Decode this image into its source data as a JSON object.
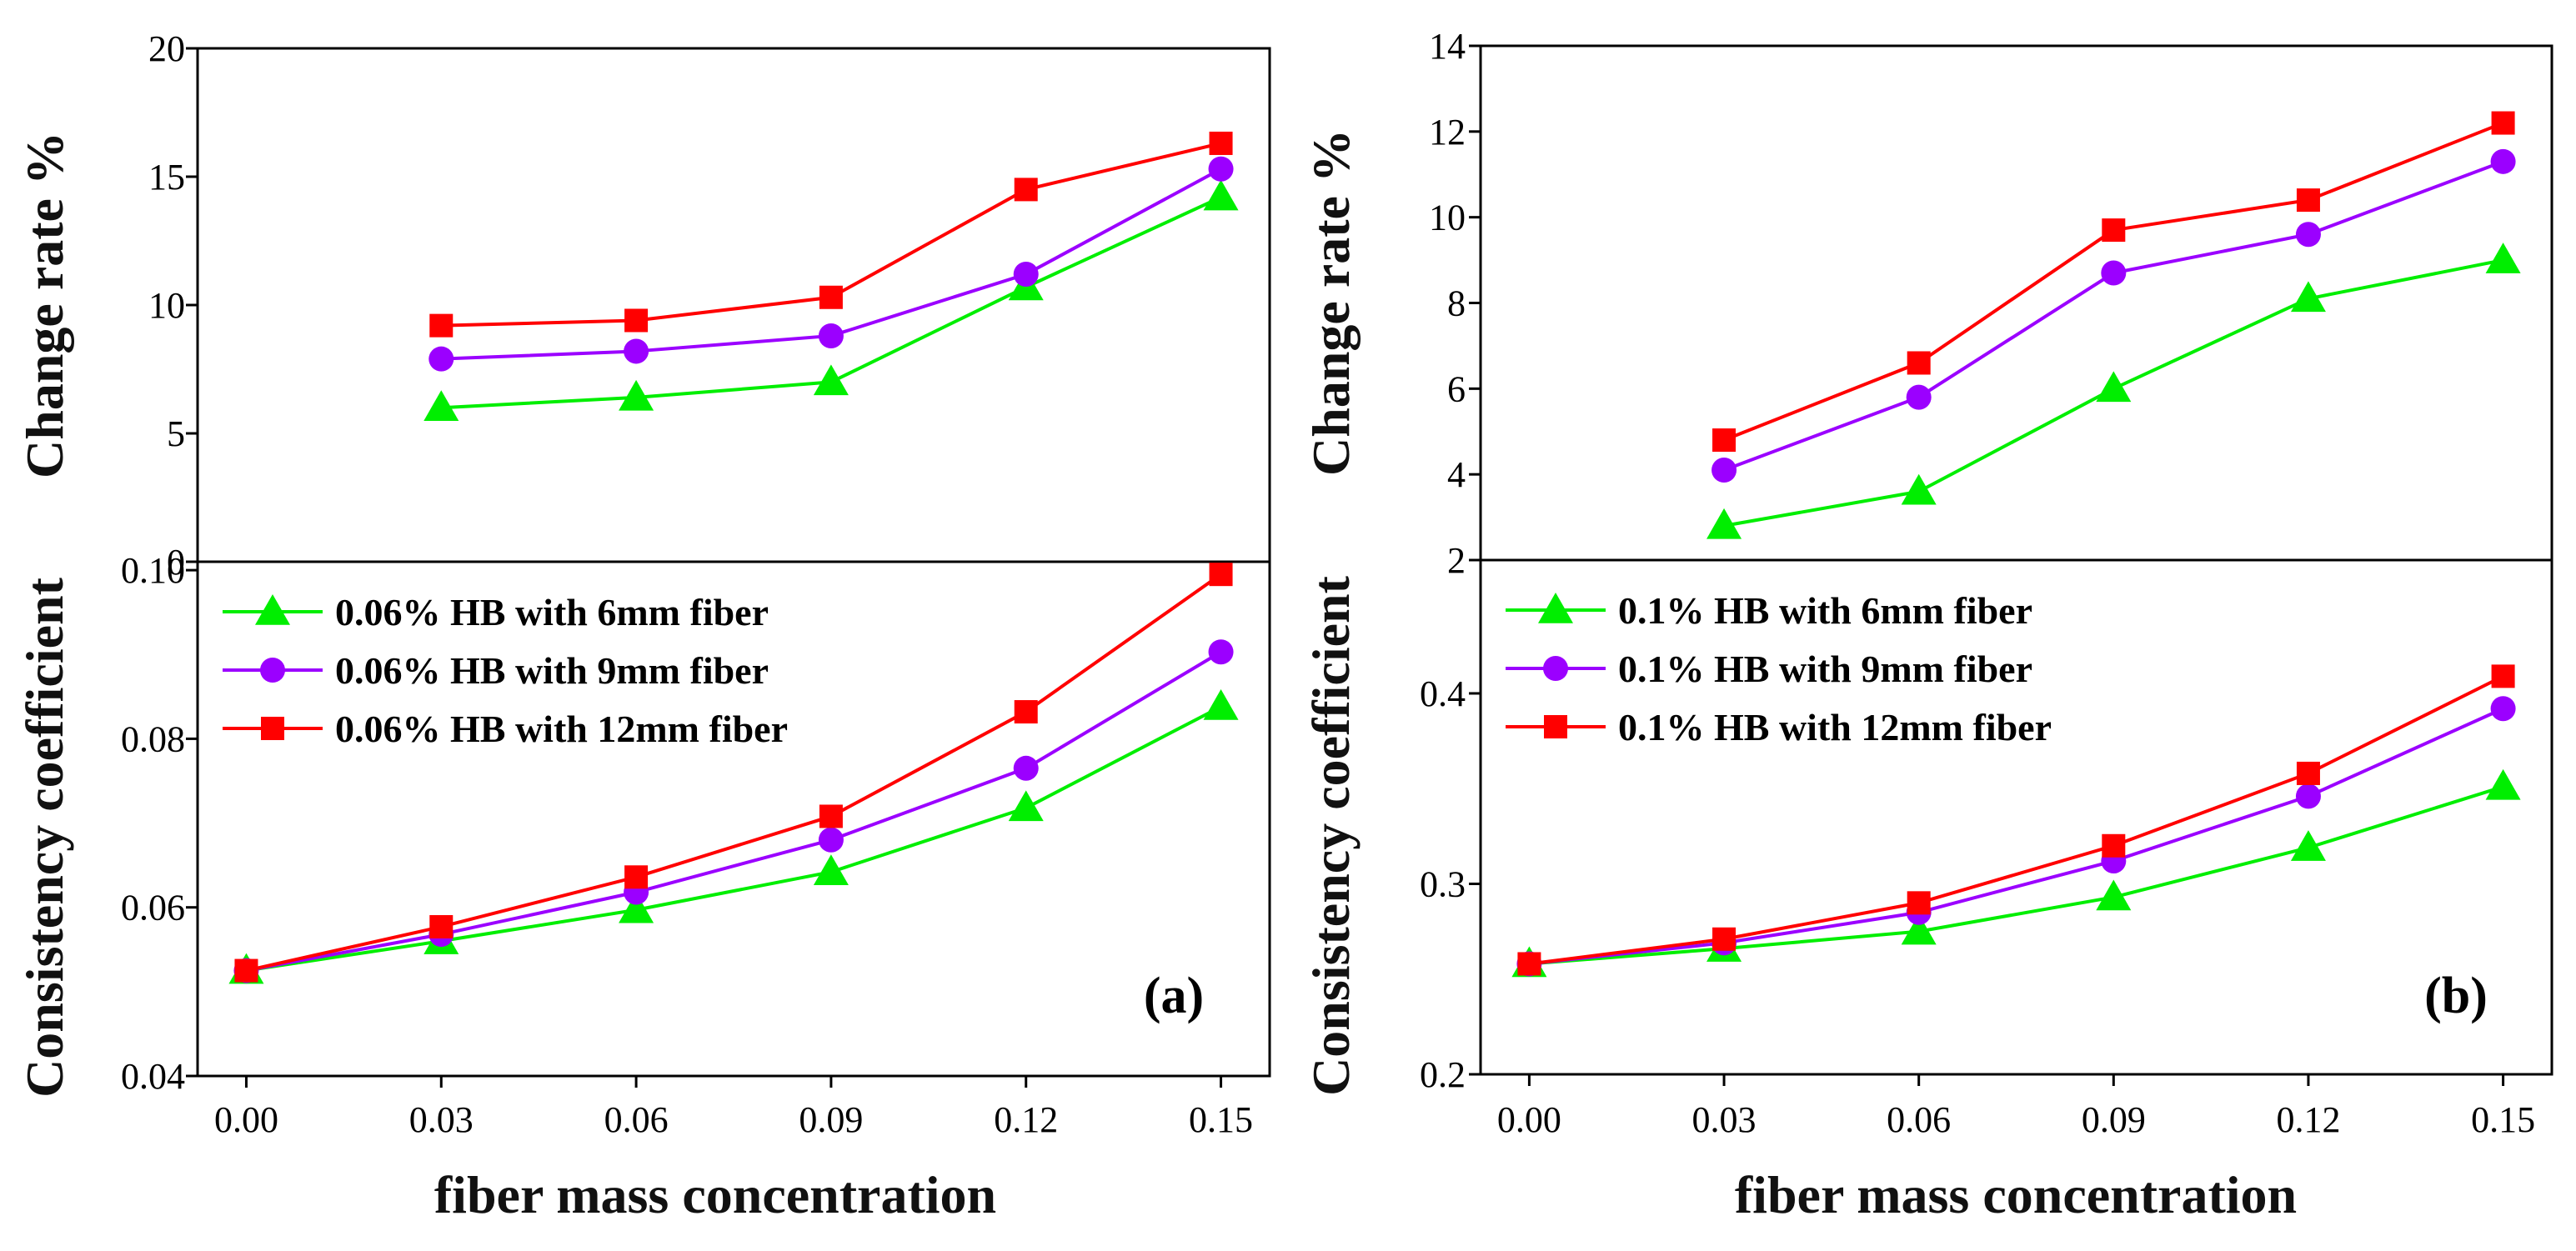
{
  "chart_data": [
    {
      "type": "line",
      "panel_label": "(a)",
      "x": [
        0.0,
        0.03,
        0.06,
        0.09,
        0.12,
        0.15
      ],
      "x_ticks": [
        "0.00",
        "0.03",
        "0.06",
        "0.09",
        "0.12",
        "0.15"
      ],
      "x_range": [
        -0.0075,
        0.1575
      ],
      "xlabel": "fiber mass concentration",
      "colors": [
        "#00ee00",
        "#9b00ff",
        "#ff0000"
      ],
      "markers": [
        "triangle",
        "circle",
        "square"
      ],
      "top": {
        "ylabel": "Change rate %",
        "ylim": [
          0,
          20
        ],
        "y_ticks": [
          "0",
          "5",
          "10",
          "15",
          "20"
        ],
        "series": [
          {
            "values": [
              null,
              6.0,
              6.4,
              7.0,
              10.7,
              14.2
            ]
          },
          {
            "values": [
              null,
              7.9,
              8.2,
              8.8,
              11.2,
              15.3
            ]
          },
          {
            "values": [
              null,
              9.2,
              9.4,
              10.3,
              14.5,
              16.3
            ]
          }
        ]
      },
      "bottom": {
        "ylabel": "Consistency coefficient",
        "ylim": [
          0.04,
          0.101
        ],
        "y_ticks": [
          "0.04",
          "0.06",
          "0.08",
          "0.10"
        ],
        "legend_position": "top-left",
        "series": [
          {
            "name": "0.06% HB with 6mm fiber",
            "values": [
              0.0525,
              0.056,
              0.0597,
              0.0642,
              0.0718,
              0.0838
            ]
          },
          {
            "name": "0.06% HB with 9mm fiber",
            "values": [
              0.0525,
              0.0568,
              0.0618,
              0.068,
              0.0765,
              0.0903
            ]
          },
          {
            "name": "0.06% HB with 12mm fiber",
            "values": [
              0.0525,
              0.0577,
              0.0636,
              0.0708,
              0.0832,
              0.0995
            ]
          }
        ]
      }
    },
    {
      "type": "line",
      "panel_label": "(b)",
      "x": [
        0.0,
        0.03,
        0.06,
        0.09,
        0.12,
        0.15
      ],
      "x_ticks": [
        "0.00",
        "0.03",
        "0.06",
        "0.09",
        "0.12",
        "0.15"
      ],
      "x_range": [
        -0.0075,
        0.1575
      ],
      "xlabel": "fiber mass concentration",
      "colors": [
        "#00ee00",
        "#9b00ff",
        "#ff0000"
      ],
      "markers": [
        "triangle",
        "circle",
        "square"
      ],
      "top": {
        "ylabel": "Change rate %",
        "ylim": [
          2,
          14
        ],
        "y_ticks": [
          "2",
          "4",
          "6",
          "8",
          "10",
          "12",
          "14"
        ],
        "series": [
          {
            "values": [
              null,
              2.8,
              3.6,
              6.0,
              8.1,
              9.0
            ]
          },
          {
            "values": [
              null,
              4.1,
              5.8,
              8.7,
              9.6,
              11.3
            ]
          },
          {
            "values": [
              null,
              4.8,
              6.6,
              9.7,
              10.4,
              12.2
            ]
          }
        ]
      },
      "bottom": {
        "ylabel": "Consistency coefficient",
        "ylim": [
          0.2,
          0.47
        ],
        "y_ticks": [
          "0.2",
          "0.3",
          "0.4"
        ],
        "legend_position": "top-left",
        "series": [
          {
            "name": "0.1% HB with 6mm fiber",
            "values": [
              0.258,
              0.266,
              0.275,
              0.293,
              0.319,
              0.351
            ]
          },
          {
            "name": "0.1% HB with 9mm fiber",
            "values": [
              0.258,
              0.269,
              0.285,
              0.312,
              0.346,
              0.392
            ]
          },
          {
            "name": "0.1% HB with 12mm fiber",
            "values": [
              0.258,
              0.271,
              0.29,
              0.32,
              0.358,
              0.409
            ]
          }
        ]
      }
    }
  ]
}
